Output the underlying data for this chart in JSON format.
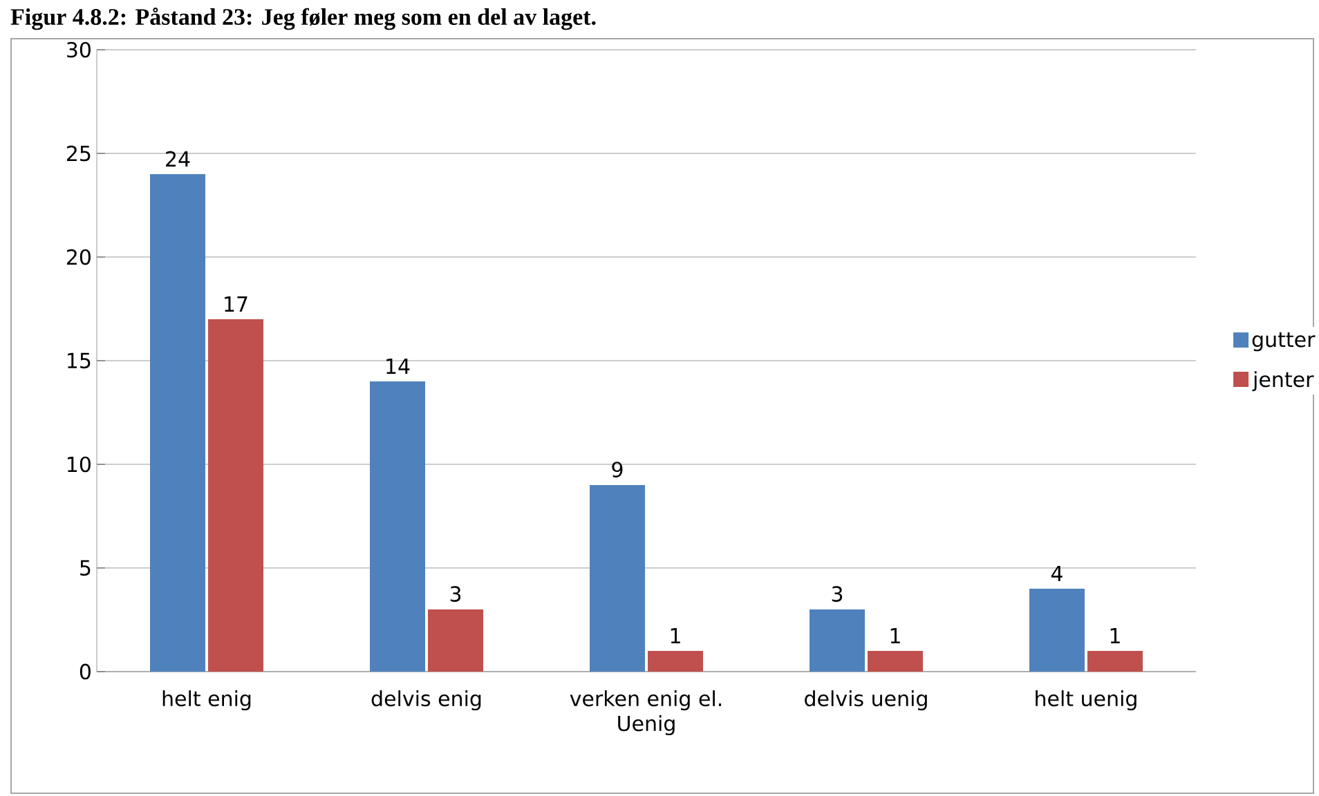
{
  "chart_data": {
    "type": "bar",
    "title": "Figur 4.8.2: Påstand 23: Jeg føler meg som en del av laget.",
    "categories": [
      "helt enig",
      "delvis enig",
      "verken enig el. Uenig",
      "delvis uenig",
      "helt uenig"
    ],
    "series": [
      {
        "name": "gutter",
        "color": "#4f81bd",
        "values": [
          24,
          14,
          9,
          3,
          4
        ]
      },
      {
        "name": "jenter",
        "color": "#c0504d",
        "values": [
          17,
          3,
          1,
          1,
          1
        ]
      }
    ],
    "ylim": [
      0,
      30
    ],
    "yticks": [
      0,
      5,
      10,
      15,
      20,
      25,
      30
    ],
    "grid": "y",
    "legend": "right",
    "data_labels": true
  }
}
